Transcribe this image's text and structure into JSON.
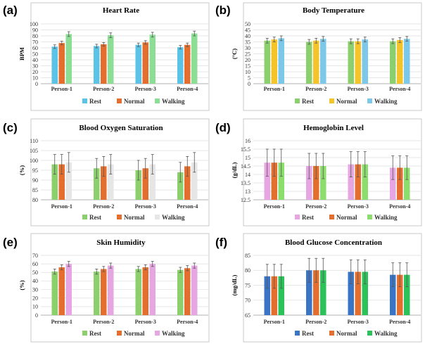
{
  "chart_data": [
    {
      "type": "bar",
      "panel_label": "(a)",
      "title": "Heart Rate",
      "ylabel": "BPM",
      "ylim": [
        0,
        100
      ],
      "yticks": [
        "0",
        "10",
        "20",
        "30",
        "40",
        "50",
        "60",
        "70",
        "80",
        "90",
        "100"
      ],
      "categories": [
        "Person-1",
        "Person-2",
        "Person-3",
        "Person-4"
      ],
      "series": [
        {
          "name": "Rest",
          "color": "#5BC3E6",
          "values": [
            62,
            63,
            65,
            61
          ],
          "errors": [
            3,
            3,
            3,
            3
          ]
        },
        {
          "name": "Normal",
          "color": "#E46E2E",
          "values": [
            68,
            66,
            69,
            65
          ],
          "errors": [
            3,
            3,
            3,
            3
          ]
        },
        {
          "name": "Walking",
          "color": "#8CDE94",
          "values": [
            83,
            81,
            82,
            84
          ],
          "errors": [
            4,
            4,
            4,
            4
          ]
        }
      ],
      "legend": "bottom",
      "grid": true
    },
    {
      "type": "bar",
      "panel_label": "(b)",
      "title": "Body Temperature",
      "ylabel": "(°C)",
      "ylim": [
        0,
        50
      ],
      "yticks": [
        "0",
        "5",
        "10",
        "15",
        "20",
        "25",
        "30",
        "35",
        "40",
        "45",
        "50"
      ],
      "categories": [
        "Person-1",
        "Person-2",
        "Person-3",
        "Person-4"
      ],
      "series": [
        {
          "name": "Rest",
          "color": "#8CD06E",
          "values": [
            36,
            35,
            35.5,
            35.5
          ],
          "errors": [
            2,
            2,
            2,
            2
          ]
        },
        {
          "name": "Normal",
          "color": "#F5C428",
          "values": [
            37,
            36,
            35.5,
            36.5
          ],
          "errors": [
            2,
            2,
            2,
            2
          ]
        },
        {
          "name": "Walking",
          "color": "#7CC8E8",
          "values": [
            38,
            37.5,
            37,
            37.5
          ],
          "errors": [
            2,
            2,
            2,
            2
          ]
        }
      ],
      "legend": "bottom",
      "grid": true
    },
    {
      "type": "bar",
      "panel_label": "(c)",
      "title": "Blood Oxygen Saturation",
      "ylabel": "(%)",
      "ylim": [
        80,
        110
      ],
      "yticks": [
        "80",
        "85",
        "90",
        "95",
        "100",
        "105",
        "110"
      ],
      "categories": [
        "Person-1",
        "Person-2",
        "Person-3",
        "Person-4"
      ],
      "series": [
        {
          "name": "Rest",
          "color": "#8CD06E",
          "values": [
            98,
            96,
            95,
            94
          ],
          "errors": [
            5,
            5,
            5,
            5
          ]
        },
        {
          "name": "Normal",
          "color": "#E46E2E",
          "values": [
            98,
            97,
            96,
            97
          ],
          "errors": [
            5,
            5,
            5,
            5
          ]
        },
        {
          "name": "Walking",
          "color": "#E6E6E6",
          "values": [
            99,
            98,
            98,
            99
          ],
          "errors": [
            5,
            5,
            5,
            5
          ]
        }
      ],
      "legend": "bottom",
      "grid": true
    },
    {
      "type": "bar",
      "panel_label": "(d)",
      "title": "Hemoglobin Level",
      "ylabel": "(g/dL)",
      "ylim": [
        12.5,
        16
      ],
      "yticks": [
        "12.5",
        "13",
        "13.5",
        "14",
        "14.5",
        "15",
        "15.5",
        "16"
      ],
      "categories": [
        "Person-1",
        "Person-2",
        "Person-3",
        "Person-4"
      ],
      "series": [
        {
          "name": "Rest",
          "color": "#E6A6E2",
          "values": [
            14.7,
            14.5,
            14.6,
            14.4
          ],
          "errors": [
            0.8,
            0.75,
            0.75,
            0.7
          ]
        },
        {
          "name": "Normal",
          "color": "#E46E2E",
          "values": [
            14.7,
            14.5,
            14.6,
            14.4
          ],
          "errors": [
            0.8,
            0.75,
            0.75,
            0.7
          ]
        },
        {
          "name": "Walking",
          "color": "#8CDE6C",
          "values": [
            14.7,
            14.5,
            14.6,
            14.4
          ],
          "errors": [
            0.8,
            0.75,
            0.75,
            0.7
          ]
        }
      ],
      "legend": "bottom",
      "grid": true
    },
    {
      "type": "bar",
      "panel_label": "(e)",
      "title": "Skin Humidity",
      "ylabel": "(%)",
      "ylim": [
        0,
        70
      ],
      "yticks": [
        "0",
        "10",
        "20",
        "30",
        "40",
        "50",
        "60",
        "70"
      ],
      "categories": [
        "Person-1",
        "Person-2",
        "Person-3",
        "Person-4"
      ],
      "series": [
        {
          "name": "Rest",
          "color": "#8CD06E",
          "values": [
            51,
            51,
            54,
            53
          ],
          "errors": [
            3,
            3,
            3,
            3
          ]
        },
        {
          "name": "Normal",
          "color": "#E46E2E",
          "values": [
            56,
            54,
            56,
            55
          ],
          "errors": [
            3,
            3,
            3,
            3
          ]
        },
        {
          "name": "Walking",
          "color": "#E6A6E2",
          "values": [
            60,
            58,
            60,
            58
          ],
          "errors": [
            3,
            3,
            3,
            3
          ]
        }
      ],
      "legend": "bottom",
      "grid": true
    },
    {
      "type": "bar",
      "panel_label": "(f)",
      "title": "Blood Glucose Concentration",
      "ylabel": "(mg/dL)",
      "ylim": [
        65,
        85
      ],
      "yticks": [
        "65",
        "70",
        "75",
        "80",
        "85"
      ],
      "categories": [
        "Person-1",
        "Person-2",
        "Person-3",
        "Person-4"
      ],
      "series": [
        {
          "name": "Rest",
          "color": "#3A74C4",
          "values": [
            78,
            80,
            79.5,
            78.5
          ],
          "errors": [
            4,
            4,
            4,
            4
          ]
        },
        {
          "name": "Normal",
          "color": "#E46E2E",
          "values": [
            78,
            80,
            79.5,
            78.5
          ],
          "errors": [
            4,
            4,
            4,
            4
          ]
        },
        {
          "name": "Walking",
          "color": "#2CC25A",
          "values": [
            78,
            80,
            79.5,
            78.5
          ],
          "errors": [
            4,
            4,
            4,
            4
          ]
        }
      ],
      "legend": "bottom",
      "grid": true
    }
  ]
}
